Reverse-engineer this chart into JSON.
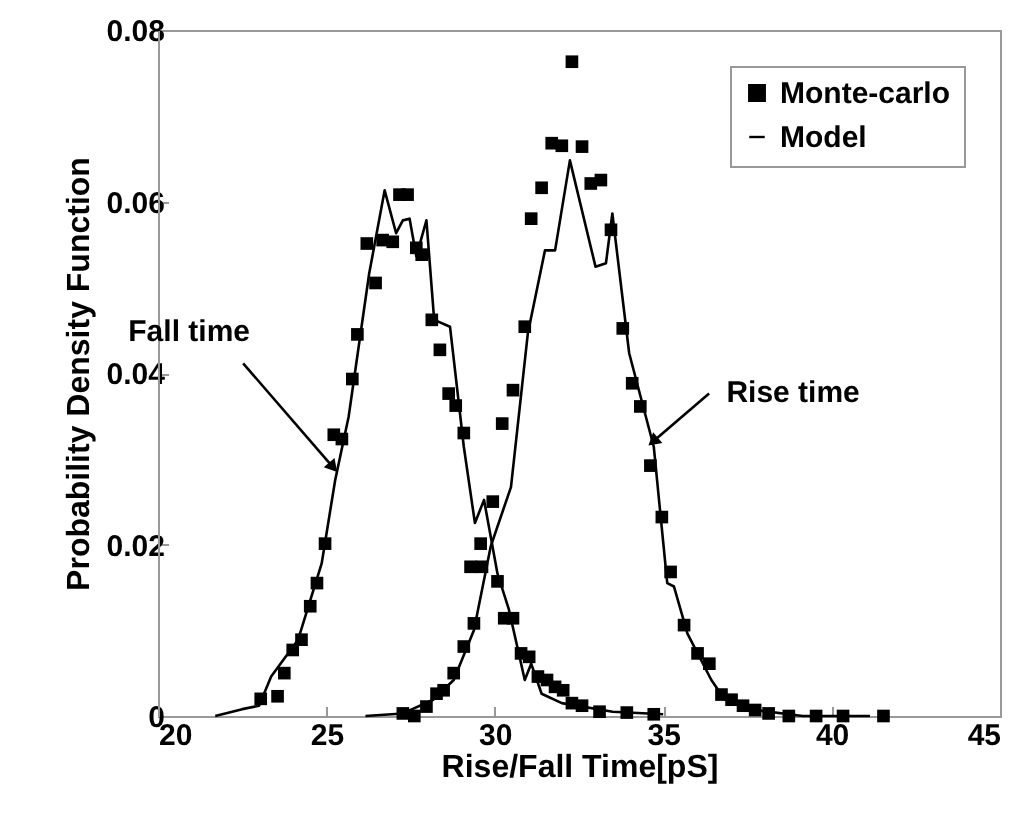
{
  "chart_data": {
    "type": "scatter",
    "xlabel": "Rise/Fall Time[pS]",
    "ylabel": "Probability Density Function",
    "xlim": [
      20,
      45
    ],
    "ylim": [
      0,
      0.08
    ],
    "xticks": [
      20,
      25,
      30,
      35,
      40,
      45
    ],
    "yticks": [
      0,
      0.02,
      0.04,
      0.06,
      0.08
    ],
    "grid": false,
    "legend": "top right",
    "line_style": "solid",
    "annotations": [
      {
        "text": "Fall time",
        "x": 25.2,
        "y": 0.029
      },
      {
        "text": "Rise time",
        "x": 34.7,
        "y": 0.032
      }
    ],
    "series": [
      {
        "name": "Monte-carlo",
        "color": "#000000",
        "x": [
          23.05,
          23.55,
          23.75,
          24.0,
          24.26,
          24.52,
          24.72,
          24.96,
          25.22,
          25.46,
          25.77,
          25.92,
          26.2,
          26.46,
          26.67,
          26.97,
          27.17,
          27.41,
          27.67,
          27.83,
          28.13,
          28.37,
          28.63,
          28.84,
          29.08,
          29.28,
          29.58,
          29.62,
          30.08,
          30.28,
          30.54,
          30.78,
          31.02,
          31.28,
          31.55,
          31.79,
          32.03,
          32.29,
          32.59,
          33.11,
          33.92,
          34.72
        ],
        "values": [
          0.002,
          0.0023,
          0.005,
          0.0077,
          0.0089,
          0.0128,
          0.0155,
          0.0201,
          0.0328,
          0.0323,
          0.0393,
          0.0445,
          0.0551,
          0.0505,
          0.0555,
          0.0553,
          0.0608,
          0.0608,
          0.0546,
          0.0538,
          0.0462,
          0.0427,
          0.0376,
          0.0362,
          0.033,
          0.0174,
          0.0201,
          0.0174,
          0.0157,
          0.0114,
          0.0114,
          0.0073,
          0.0069,
          0.0046,
          0.0042,
          0.0034,
          0.003,
          0.0015,
          0.0012,
          0.0005,
          0.0004,
          0.0002
        ]
      },
      {
        "color": "#000000",
        "x": [
          27.27,
          27.61,
          27.97,
          28.27,
          28.48,
          28.78,
          29.08,
          29.38,
          29.94,
          30.22,
          30.54,
          30.89,
          31.08,
          31.39,
          31.69,
          31.99,
          32.29,
          32.59,
          32.85,
          33.15,
          33.45,
          33.8,
          34.08,
          34.32,
          34.62,
          34.96,
          35.22,
          35.62,
          36.02,
          36.37,
          36.73,
          37.03,
          37.37,
          37.73,
          38.13,
          38.73,
          39.54,
          40.34,
          41.54
        ],
        "values": [
          0.0003,
          0,
          0.0011,
          0.0026,
          0.003,
          0.005,
          0.0081,
          0.0108,
          0.025,
          0.0341,
          0.038,
          0.0454,
          0.058,
          0.0616,
          0.0668,
          0.0665,
          0.0763,
          0.0664,
          0.0621,
          0.0625,
          0.0567,
          0.0452,
          0.0388,
          0.0361,
          0.0292,
          0.0232,
          0.0168,
          0.0106,
          0.0073,
          0.0061,
          0.0025,
          0.0019,
          0.0012,
          0.0007,
          0.0003,
          0,
          0,
          0,
          0
        ]
      },
      {
        "name": "Model",
        "type": "line",
        "color": "#000000",
        "x": [
          21.7,
          22.5,
          23.0,
          23.36,
          24.16,
          24.86,
          25.26,
          25.66,
          26.27,
          26.73,
          27.07,
          27.27,
          27.47,
          27.67,
          27.97,
          28.2,
          28.67,
          29.08,
          29.41,
          29.68,
          30.08,
          30.42,
          30.89,
          31.08,
          31.39,
          31.99,
          33.5,
          35.0
        ],
        "values": [
          0,
          0.0008,
          0.0012,
          0.0046,
          0.0089,
          0.0178,
          0.0275,
          0.0349,
          0.0516,
          0.0613,
          0.0563,
          0.0578,
          0.058,
          0.0536,
          0.0578,
          0.0462,
          0.0454,
          0.0314,
          0.0225,
          0.0252,
          0.0166,
          0.0124,
          0.0042,
          0.0061,
          0.0026,
          0.0015,
          0.0005,
          0.0002
        ]
      },
      {
        "type": "line",
        "color": "#000000",
        "x": [
          26.16,
          27.27,
          28.17,
          28.78,
          29.38,
          29.88,
          30.48,
          30.98,
          31.49,
          31.79,
          32.23,
          32.99,
          33.3,
          33.49,
          33.99,
          34.72,
          35.12,
          35.32,
          35.72,
          36.43,
          36.83,
          37.73,
          39.14,
          41.14
        ],
        "values": [
          0,
          0.0003,
          0.0019,
          0.0042,
          0.01,
          0.0198,
          0.0267,
          0.0446,
          0.0543,
          0.0543,
          0.0648,
          0.0524,
          0.0528,
          0.0586,
          0.0423,
          0.0314,
          0.0155,
          0.0151,
          0.0096,
          0.0042,
          0.0019,
          0.0007,
          0,
          0
        ]
      }
    ]
  }
}
